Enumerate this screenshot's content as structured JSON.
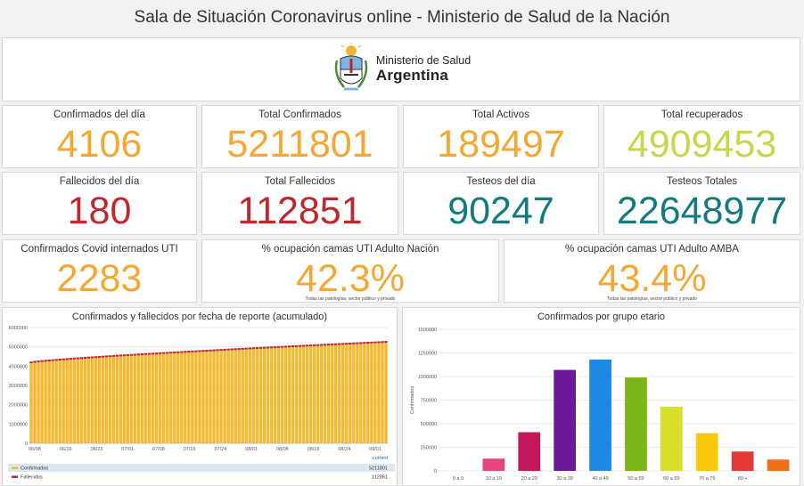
{
  "header": {
    "title": "Sala de Situación Coronavirus online - Ministerio de Salud de la Nación"
  },
  "logo": {
    "line1": "Ministerio de Salud",
    "line2": "Argentina"
  },
  "colors": {
    "orange": "#f5a733",
    "green": "#c6d84a",
    "red": "#c0262b",
    "teal": "#117b7d"
  },
  "stats": [
    {
      "label": "Confirmados del día",
      "value": "4106"
    },
    {
      "label": "Total Confirmados",
      "value": "5211801"
    },
    {
      "label": "Total Activos",
      "value": "189497"
    },
    {
      "label": "Total recuperados",
      "value": "4909453"
    },
    {
      "label": "Fallecidos del día",
      "value": "180"
    },
    {
      "label": "Total Fallecidos",
      "value": "112851"
    },
    {
      "label": "Testeos del día",
      "value": "90247"
    },
    {
      "label": "Testeos Totales",
      "value": "22648977"
    },
    {
      "label": "Confirmados Covid internados UTI",
      "value": "2283"
    },
    {
      "label": "% ocupación camas UTI Adulto Nación",
      "value": "42.3%",
      "note": "Todas las patologías, sector público y privado"
    },
    {
      "label": "% ocupación camas UTI Adulto AMBA",
      "value": "43.4%",
      "note": "Todas las patologías, sector público y privado"
    }
  ],
  "chart_data": [
    {
      "type": "bar",
      "title": "Confirmados y fallecidos por fecha de reporte (acumulado)",
      "x_tick_labels": [
        "06/08",
        "06/16",
        "06/23",
        "07/01",
        "07/08",
        "07/16",
        "07/24",
        "08/01",
        "08/08",
        "08/16",
        "08/24",
        "09/01"
      ],
      "y_tick_labels": [
        "0",
        "1000000",
        "2000000",
        "3000000",
        "4000000",
        "5000000",
        "6000000"
      ],
      "ylim": [
        0,
        6000000
      ],
      "series": [
        {
          "name": "Confirmados",
          "color": "#f5b833",
          "start": 4150000,
          "end": 5211801
        },
        {
          "name": "Fallecidos",
          "color": "#c0262b",
          "start": 87000,
          "end": 112851
        }
      ],
      "legend": {
        "header": "current",
        "rows": [
          {
            "name": "Confirmados",
            "value": "5211801"
          },
          {
            "name": "Fallecidos",
            "value": "112851"
          }
        ]
      }
    },
    {
      "type": "bar",
      "title": "Confirmados por grupo etario",
      "ylabel": "Confirmados",
      "categories": [
        "0 a 9",
        "10 a 19",
        "20 a 29",
        "30 a 39",
        "40 a 49",
        "50 a 59",
        "60 a 69",
        "70 a 79",
        "80 +",
        ""
      ],
      "values": [
        0,
        130000,
        410000,
        1070000,
        1180000,
        990000,
        680000,
        400000,
        205000,
        120000
      ],
      "colors": [
        "#ffffff",
        "#e8457a",
        "#c2185b",
        "#6a1b9a",
        "#1e88e5",
        "#7cb518",
        "#d6e02a",
        "#f9c80e",
        "#e53935",
        "#f06d1c"
      ],
      "y_tick_labels": [
        "0",
        "250000",
        "500000",
        "750000",
        "1000000",
        "1250000",
        "1500000"
      ],
      "ylim": [
        0,
        1500000
      ]
    }
  ]
}
